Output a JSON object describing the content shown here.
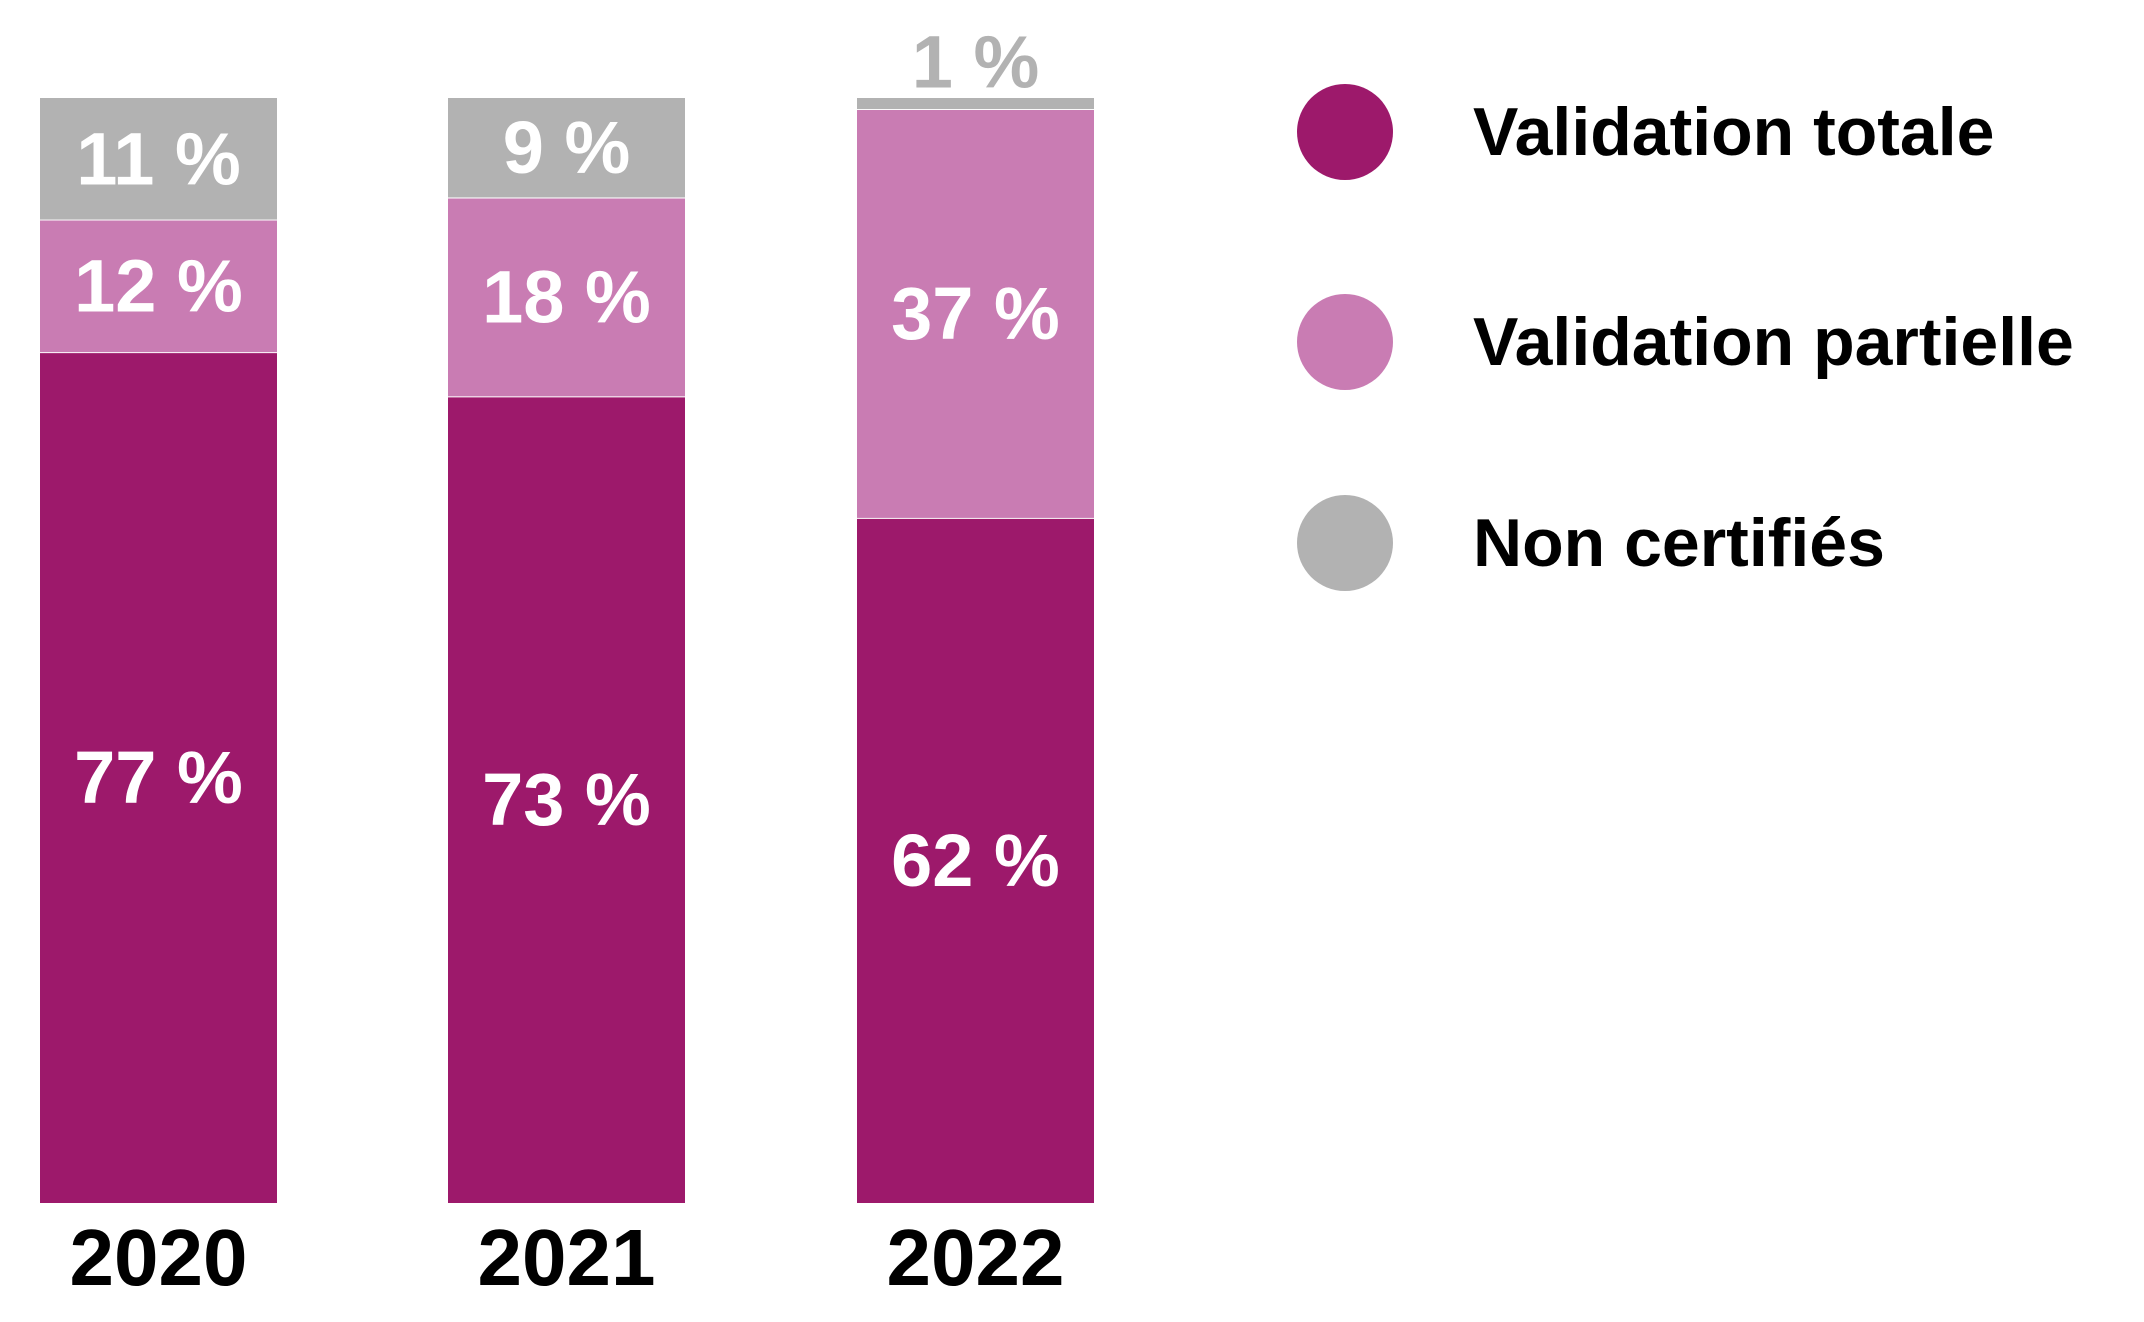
{
  "chart_data": {
    "type": "bar",
    "stacked": true,
    "categories": [
      "2020",
      "2021",
      "2022"
    ],
    "series": [
      {
        "name": "Validation totale",
        "values": [
          77,
          73,
          62
        ],
        "labels": [
          "77 %",
          "73 %",
          "62 %"
        ],
        "color": "#9d196b"
      },
      {
        "name": "Validation partielle",
        "values": [
          12,
          18,
          37
        ],
        "labels": [
          "12 %",
          "18 %",
          "37 %"
        ],
        "color": "#c97cb3"
      },
      {
        "name": "Non certifiés",
        "values": [
          11,
          9,
          1
        ],
        "labels": [
          "11 %",
          "9 %",
          "1 %"
        ],
        "color": "#b2b2b2"
      }
    ],
    "title": "",
    "xlabel": "",
    "ylabel": "",
    "ylim": [
      0,
      100
    ],
    "grid": false,
    "legend_position": "right"
  }
}
